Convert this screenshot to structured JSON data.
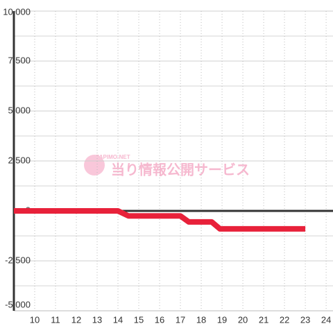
{
  "chart_data": {
    "type": "line",
    "watermark_small": "PAPIMO-NET",
    "watermark": "当り情報公開サービス",
    "x": [
      9,
      14,
      14.5,
      17,
      17.4,
      18.5,
      18.9,
      23
    ],
    "series": [
      {
        "color": "#e8213a",
        "values": [
          0,
          0,
          -250,
          -250,
          -550,
          -550,
          -900,
          -900
        ]
      }
    ],
    "xlim": [
      9,
      24.33
    ],
    "xticks": [
      10,
      11,
      12,
      13,
      14,
      15,
      16,
      17,
      18,
      19,
      20,
      21,
      22,
      23,
      24
    ],
    "ylim": [
      -5000,
      10000
    ],
    "yticks": [
      {
        "value": 10000,
        "label": "10,000"
      },
      {
        "value": 7500,
        "label": "7,500"
      },
      {
        "value": 5000,
        "label": "5,000"
      },
      {
        "value": 2500,
        "label": "2,500"
      },
      0,
      {
        "value": -2500,
        "label": "-2,500"
      },
      {
        "value": -5000,
        "label": "-5,000"
      }
    ],
    "yminorticks": [
      8750,
      6250,
      3750,
      1250,
      -1250,
      -3750
    ],
    "grid": true
  }
}
